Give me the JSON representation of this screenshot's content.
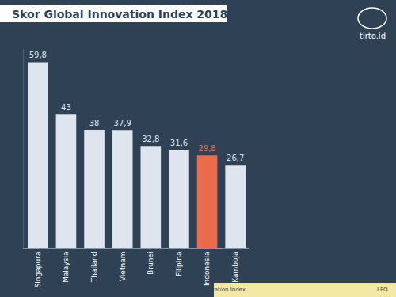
{
  "chart_data": {
    "type": "bar",
    "title": "Skor Global Innovation Index 2018",
    "categories": [
      "Singapura",
      "Malaysia",
      "Thailand",
      "Vietnam",
      "Brunei",
      "Filipina",
      "Indonesia",
      "Kamboja"
    ],
    "values": [
      59.8,
      43,
      38,
      37.9,
      32.8,
      31.6,
      29.8,
      26.7
    ],
    "value_labels": [
      "59,8",
      "43",
      "38",
      "37,9",
      "32,8",
      "31,6",
      "29,8",
      "26,7"
    ],
    "colors": [
      "#dfe5ee",
      "#dfe5ee",
      "#dfe5ee",
      "#dfe5ee",
      "#dfe5ee",
      "#dfe5ee",
      "#ea6b4b",
      "#dfe5ee"
    ],
    "data_labels": true,
    "tick_labels": "x",
    "grid": false,
    "ylim": [
      0,
      64
    ],
    "annotations": [
      "Sumber: Global Innovation Index",
      "LFQ",
      "tirto.id"
    ]
  }
}
